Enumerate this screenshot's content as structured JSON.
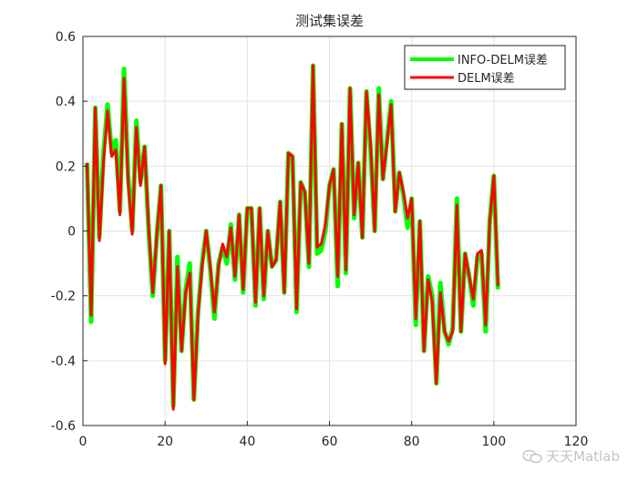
{
  "chart_data": {
    "type": "line",
    "title": "测试集误差",
    "xlabel": "",
    "ylabel": "",
    "xlim": [
      0,
      120
    ],
    "ylim": [
      -0.6,
      0.6
    ],
    "xticks": [
      0,
      20,
      40,
      60,
      80,
      100,
      120
    ],
    "yticks": [
      -0.6,
      -0.4,
      -0.2,
      0,
      0.2,
      0.4,
      0.6
    ],
    "xtick_labels": [
      "0",
      "20",
      "40",
      "60",
      "80",
      "100",
      "120"
    ],
    "ytick_labels": [
      "-0.6",
      "-0.4",
      "-0.2",
      "0",
      "0.2",
      "0.4",
      "0.6"
    ],
    "grid": true,
    "legend_position": "top-right",
    "x_start": 1,
    "series": [
      {
        "name": "INFO-DELM误差",
        "color": "#00ff00",
        "values": [
          0.21,
          -0.28,
          0.38,
          -0.02,
          0.24,
          0.39,
          0.24,
          0.28,
          0.06,
          0.5,
          0.17,
          0.0,
          0.34,
          0.15,
          0.26,
          0.0,
          -0.2,
          -0.01,
          0.14,
          -0.4,
          0.0,
          -0.54,
          -0.08,
          -0.37,
          -0.18,
          -0.1,
          -0.52,
          -0.25,
          -0.1,
          0.0,
          -0.12,
          -0.27,
          -0.1,
          -0.05,
          -0.1,
          0.02,
          -0.15,
          0.05,
          -0.19,
          0.07,
          0.07,
          -0.23,
          0.07,
          -0.21,
          0.0,
          -0.11,
          -0.09,
          0.09,
          -0.19,
          0.24,
          0.23,
          -0.25,
          0.15,
          0.12,
          -0.11,
          0.51,
          -0.07,
          -0.06,
          0.0,
          0.14,
          0.19,
          -0.17,
          0.33,
          -0.13,
          0.44,
          0.04,
          0.21,
          -0.02,
          0.43,
          0.25,
          0.0,
          0.44,
          0.16,
          0.28,
          0.4,
          0.06,
          0.18,
          0.11,
          0.01,
          0.1,
          -0.29,
          0.03,
          -0.37,
          -0.14,
          -0.2,
          -0.47,
          -0.16,
          -0.31,
          -0.35,
          -0.3,
          0.1,
          -0.31,
          -0.07,
          -0.14,
          -0.23,
          -0.08,
          -0.07,
          -0.31,
          0.03,
          0.17,
          -0.18
        ]
      },
      {
        "name": "DELM误差",
        "color": "#ff0000",
        "values": [
          0.21,
          -0.26,
          0.38,
          -0.03,
          0.21,
          0.37,
          0.23,
          0.25,
          0.05,
          0.47,
          0.15,
          -0.01,
          0.32,
          0.14,
          0.26,
          0.01,
          -0.19,
          -0.01,
          0.14,
          -0.41,
          0.0,
          -0.55,
          -0.11,
          -0.37,
          -0.19,
          -0.13,
          -0.52,
          -0.26,
          -0.11,
          0.0,
          -0.11,
          -0.25,
          -0.11,
          -0.04,
          -0.08,
          0.01,
          -0.14,
          0.05,
          -0.18,
          0.07,
          0.07,
          -0.22,
          0.07,
          -0.2,
          0.0,
          -0.11,
          -0.09,
          0.09,
          -0.19,
          0.24,
          0.23,
          -0.24,
          0.15,
          0.12,
          -0.1,
          0.51,
          -0.05,
          -0.04,
          0.02,
          0.14,
          0.19,
          -0.14,
          0.33,
          -0.12,
          0.44,
          0.05,
          0.21,
          -0.02,
          0.43,
          0.27,
          0.0,
          0.42,
          0.16,
          0.27,
          0.39,
          0.06,
          0.18,
          0.12,
          0.04,
          0.1,
          -0.27,
          0.03,
          -0.37,
          -0.15,
          -0.22,
          -0.47,
          -0.19,
          -0.31,
          -0.34,
          -0.31,
          0.08,
          -0.31,
          -0.07,
          -0.14,
          -0.21,
          -0.07,
          -0.06,
          -0.29,
          0.03,
          0.17,
          -0.17
        ]
      }
    ]
  },
  "watermark": {
    "text": "天天Matlab",
    "icon": "wechat-icon"
  }
}
